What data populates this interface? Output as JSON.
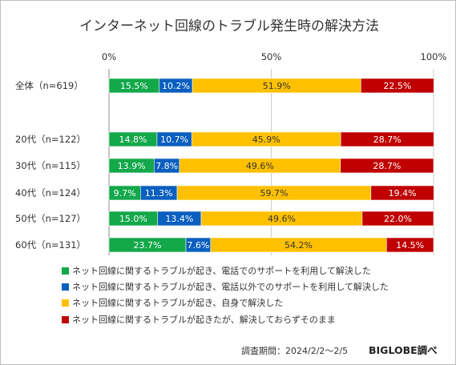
{
  "chart_data": {
    "type": "bar",
    "orientation": "horizontal",
    "stacked": true,
    "title": "インターネット回線のトラブル発生時の解決方法",
    "xlim": [
      0,
      100
    ],
    "ticks": [
      "0%",
      "50%",
      "100%"
    ],
    "categories": [
      "全体（n=619）",
      "20代（n=122）",
      "30代（n=115）",
      "40代（n=124）",
      "50代（n=127）",
      "60代（n=131）"
    ],
    "series": [
      {
        "name": "ネット回線に関するトラブルが起き、電話でのサポートを利用して解決した",
        "color": "#13a84a",
        "label_color": "#ffffff",
        "values": [
          15.5,
          14.8,
          13.9,
          9.7,
          15.0,
          23.7
        ]
      },
      {
        "name": "ネット回線に関するトラブルが起き、電話以外でのサポートを利用して解決した",
        "color": "#0a5fbf",
        "label_color": "#ffffff",
        "values": [
          10.2,
          10.7,
          7.8,
          11.3,
          13.4,
          7.6
        ]
      },
      {
        "name": "ネット回線に関するトラブルが起き、自身で解決した",
        "color": "#ffc000",
        "label_color": "#333333",
        "values": [
          51.9,
          45.9,
          49.6,
          59.7,
          49.6,
          54.2
        ]
      },
      {
        "name": "ネット回線に関するトラブルが起きたが、解決しておらずそのまま",
        "color": "#c00000",
        "label_color": "#ffffff",
        "values": [
          22.5,
          28.7,
          28.7,
          19.4,
          22.0,
          14.5
        ]
      }
    ],
    "labels": [
      [
        "15.5%",
        "14.8%",
        "13.9%",
        "9.7%",
        "15.0%",
        "23.7%"
      ],
      [
        "10.2%",
        "10.7%",
        "7.8%",
        "11.3%",
        "13.4%",
        "7.6%"
      ],
      [
        "51.9%",
        "45.9%",
        "49.6%",
        "59.7%",
        "49.6%",
        "54.2%"
      ],
      [
        "22.5%",
        "28.7%",
        "28.7%",
        "19.4%",
        "22.0%",
        "14.5%"
      ]
    ],
    "legend_position": "bottom",
    "grid": true
  },
  "footer": {
    "source": "調査期間：2024/2/2～2/5",
    "brand": "BIGLOBE調べ"
  },
  "colors": {
    "grid": "#cccccc",
    "axis": "#8c8c8c"
  }
}
